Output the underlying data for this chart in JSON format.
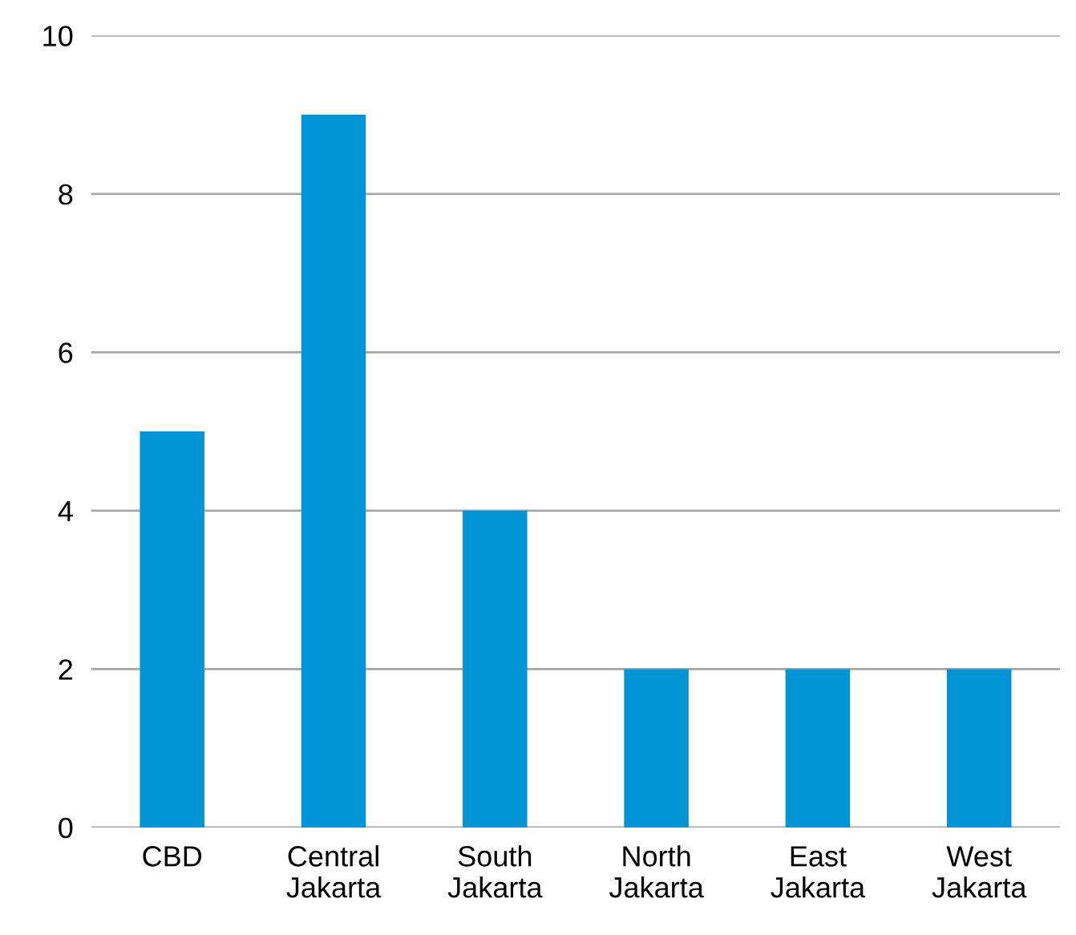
{
  "chart_data": {
    "type": "bar",
    "categories": [
      "CBD",
      "Central\nJakarta",
      "South\nJakarta",
      "North\nJakarta",
      "East\nJakarta",
      "West\nJakarta"
    ],
    "values": [
      5,
      9,
      4,
      2,
      2,
      2
    ],
    "color": "#0094d4",
    "ylim": [
      0,
      10
    ],
    "yticks": [
      0,
      2,
      4,
      6,
      8,
      10
    ],
    "grid": "y"
  }
}
